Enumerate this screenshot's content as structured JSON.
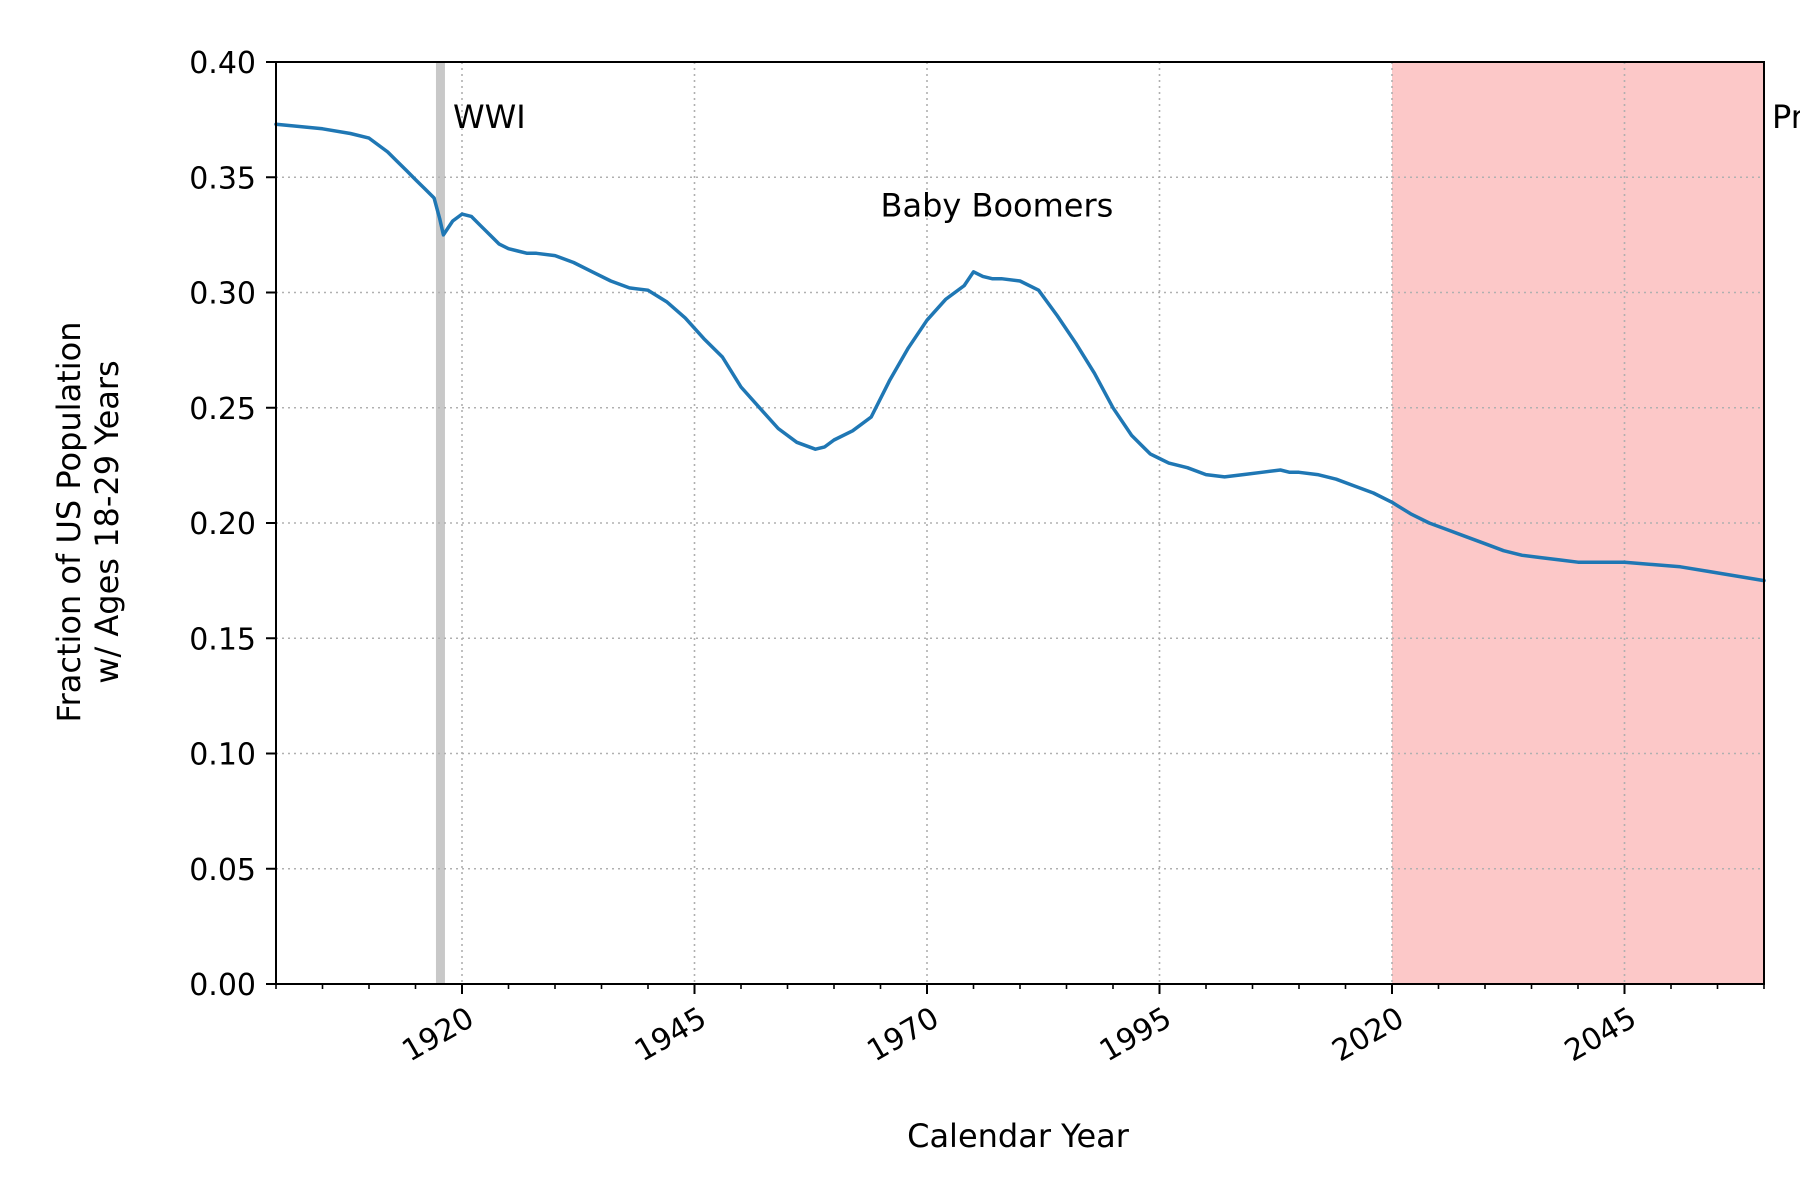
{
  "chart_data": {
    "type": "line",
    "title": "",
    "xlabel": "Calendar Year",
    "ylabel_lines": [
      "Fraction of US Population",
      "w/ Ages 18-29 Years"
    ],
    "xlim": [
      1900,
      2060
    ],
    "ylim": [
      0.0,
      0.4
    ],
    "x_ticks": [
      1920,
      1945,
      1970,
      1995,
      2020,
      2045
    ],
    "x_minor_step": 5,
    "y_ticks": [
      0.0,
      0.05,
      0.1,
      0.15,
      0.2,
      0.25,
      0.3,
      0.35,
      0.4
    ],
    "y_tick_labels": [
      "0.00",
      "0.05",
      "0.10",
      "0.15",
      "0.20",
      "0.25",
      "0.30",
      "0.35",
      "0.40"
    ],
    "grid": true,
    "line_color": "#1f77b4",
    "shaded_regions": [
      {
        "label": "WWI",
        "x_start": 1917.2,
        "x_end": 1918.0,
        "color": "#c8c8c8"
      },
      {
        "label": "Projected",
        "x_start": 2020,
        "x_end": 2060,
        "color": "#fcc8c8"
      }
    ],
    "annotations": [
      {
        "text": "Baby Boomers",
        "x": 1965,
        "y": 0.333
      }
    ],
    "series": [
      {
        "x": [
          1900,
          1905,
          1908,
          1910,
          1911,
          1912,
          1913,
          1914,
          1915,
          1916,
          1917,
          1917.6,
          1918,
          1919,
          1920,
          1921,
          1922,
          1923,
          1924,
          1925,
          1926,
          1927,
          1928,
          1930,
          1932,
          1934,
          1936,
          1938,
          1940,
          1942,
          1944,
          1946,
          1948,
          1950,
          1952,
          1954,
          1956,
          1958,
          1959,
          1960,
          1962,
          1964,
          1966,
          1968,
          1970,
          1972,
          1974,
          1975,
          1976,
          1977,
          1978,
          1980,
          1982,
          1984,
          1986,
          1988,
          1990,
          1992,
          1994,
          1995,
          1996,
          1998,
          2000,
          2002,
          2004,
          2006,
          2008,
          2009,
          2010,
          2012,
          2014,
          2016,
          2018,
          2020,
          2022,
          2024,
          2026,
          2028,
          2030,
          2032,
          2034,
          2036,
          2038,
          2040,
          2042,
          2045,
          2048,
          2051,
          2054,
          2057,
          2060
        ],
        "y": [
          0.373,
          0.371,
          0.369,
          0.367,
          0.364,
          0.361,
          0.357,
          0.353,
          0.349,
          0.345,
          0.341,
          0.332,
          0.325,
          0.331,
          0.334,
          0.333,
          0.329,
          0.325,
          0.321,
          0.319,
          0.318,
          0.317,
          0.317,
          0.316,
          0.313,
          0.309,
          0.305,
          0.302,
          0.301,
          0.296,
          0.289,
          0.28,
          0.272,
          0.259,
          0.25,
          0.241,
          0.235,
          0.232,
          0.233,
          0.236,
          0.24,
          0.246,
          0.262,
          0.276,
          0.288,
          0.297,
          0.303,
          0.309,
          0.307,
          0.306,
          0.306,
          0.305,
          0.301,
          0.29,
          0.278,
          0.265,
          0.25,
          0.238,
          0.23,
          0.228,
          0.226,
          0.224,
          0.221,
          0.22,
          0.221,
          0.222,
          0.223,
          0.222,
          0.222,
          0.221,
          0.219,
          0.216,
          0.213,
          0.209,
          0.204,
          0.2,
          0.197,
          0.194,
          0.191,
          0.188,
          0.186,
          0.185,
          0.184,
          0.183,
          0.183,
          0.183,
          0.182,
          0.181,
          0.179,
          0.177,
          0.175
        ]
      }
    ]
  }
}
